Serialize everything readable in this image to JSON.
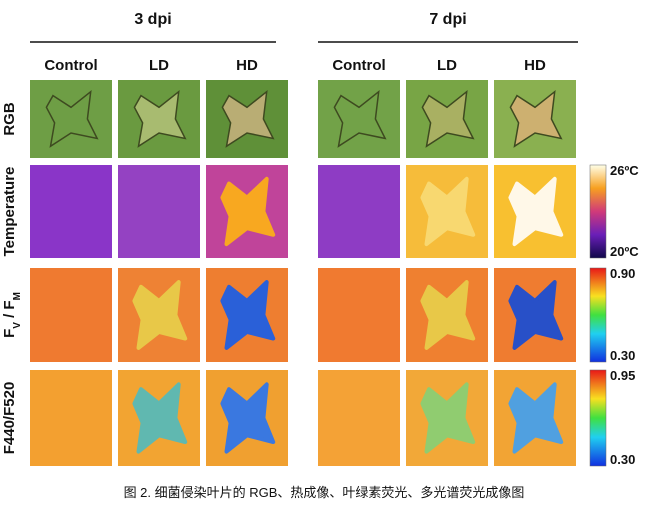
{
  "groups": [
    "3 dpi",
    "7 dpi"
  ],
  "columns": [
    "Control",
    "LD",
    "HD",
    "Control",
    "LD",
    "HD"
  ],
  "rows": [
    {
      "label": "RGB"
    },
    {
      "label": "Temperature",
      "scale_max": "26ºC",
      "scale_min": "20ºC"
    },
    {
      "label_parts": [
        "F",
        "V",
        " / F",
        "M"
      ],
      "scale_max": "0.90",
      "scale_min": "0.30"
    },
    {
      "label": "F440/F520",
      "scale_max": "0.95",
      "scale_min": "0.30"
    }
  ],
  "caption": "图 2. 细菌侵染叶片的 RGB、热成像、叶绿素荧光、多光谱荧光成像图"
}
